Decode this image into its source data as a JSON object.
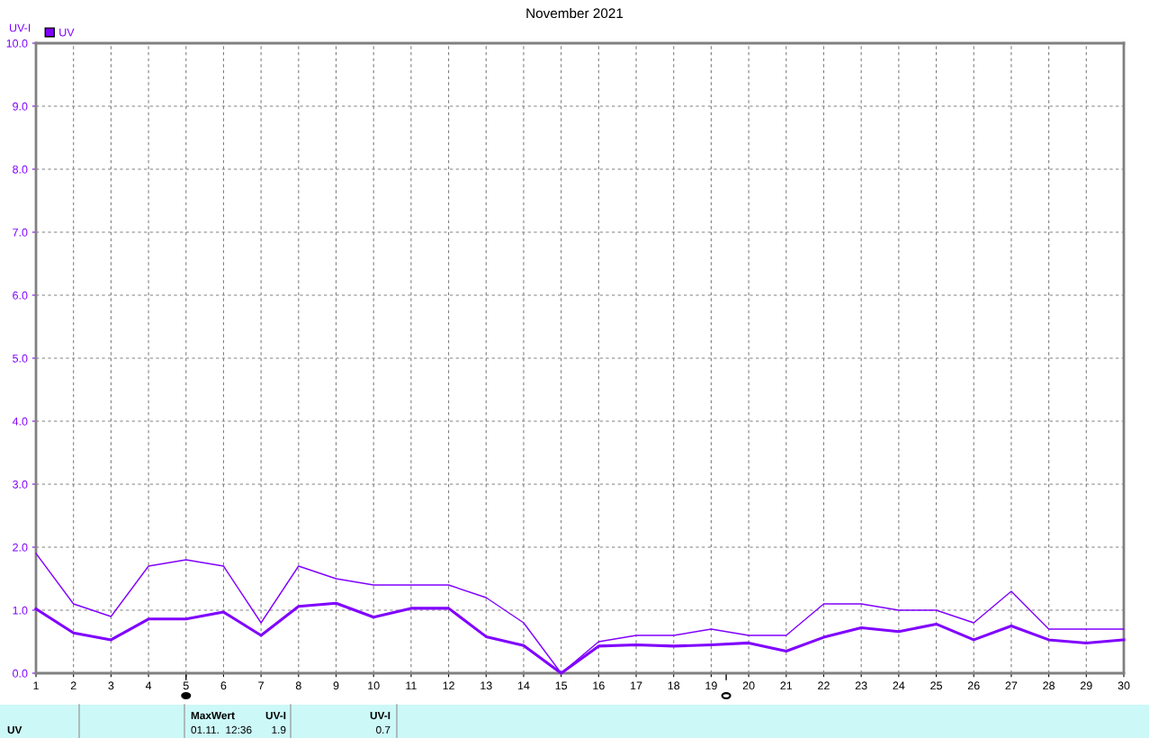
{
  "chart_data": {
    "type": "line",
    "title": "November 2021",
    "ylabel": "UV-I",
    "x": [
      1,
      2,
      3,
      4,
      5,
      6,
      7,
      8,
      9,
      10,
      11,
      12,
      13,
      14,
      15,
      16,
      17,
      18,
      19,
      20,
      21,
      22,
      23,
      24,
      25,
      26,
      27,
      28,
      29,
      30
    ],
    "series": [
      {
        "color": "#8000ff",
        "values": [
          1.9,
          1.1,
          0.9,
          1.7,
          1.8,
          1.7,
          0.8,
          1.7,
          1.5,
          1.4,
          1.4,
          1.4,
          1.2,
          0.8,
          0.0,
          0.5,
          0.6,
          0.6,
          0.7,
          0.6,
          0.6,
          1.1,
          1.1,
          1.0,
          1.0,
          0.8,
          1.3,
          0.7,
          0.7,
          0.7
        ]
      },
      {
        "name": "UV",
        "color": "#8000ff",
        "values": [
          1.02,
          0.64,
          0.53,
          0.86,
          0.86,
          0.97,
          0.6,
          1.06,
          1.11,
          0.89,
          1.03,
          1.03,
          0.58,
          0.44,
          0.0,
          0.43,
          0.45,
          0.43,
          0.45,
          0.48,
          0.35,
          0.57,
          0.72,
          0.66,
          0.78,
          0.53,
          0.75,
          0.53,
          0.48,
          0.53
        ]
      }
    ],
    "xlim": [
      1,
      30
    ],
    "xticks": [
      1,
      2,
      3,
      4,
      5,
      6,
      7,
      8,
      9,
      10,
      11,
      12,
      13,
      14,
      15,
      16,
      17,
      18,
      19,
      20,
      21,
      22,
      23,
      24,
      25,
      26,
      27,
      28,
      29,
      30
    ],
    "ylim": [
      0,
      10
    ],
    "yticks": [
      {
        "value": 0,
        "label": "0.0"
      },
      {
        "value": 1,
        "label": "1.0"
      },
      {
        "value": 2,
        "label": "2.0"
      },
      {
        "value": 3,
        "label": "3.0"
      },
      {
        "value": 4,
        "label": "4.0"
      },
      {
        "value": 5,
        "label": "5.0"
      },
      {
        "value": 6,
        "label": "6.0"
      },
      {
        "value": 7,
        "label": "7.0"
      },
      {
        "value": 8,
        "label": "8.0"
      },
      {
        "value": 9,
        "label": "9.0"
      },
      {
        "value": 10,
        "label": "10.0"
      }
    ],
    "grid": true,
    "legend": "top left",
    "marker": "none",
    "line_style": "solid",
    "annotations": [
      "UV",
      "MaxWert",
      "UV-I",
      "01.11.  12:36",
      "1.9",
      "UV-I",
      "0.7"
    ]
  }
}
